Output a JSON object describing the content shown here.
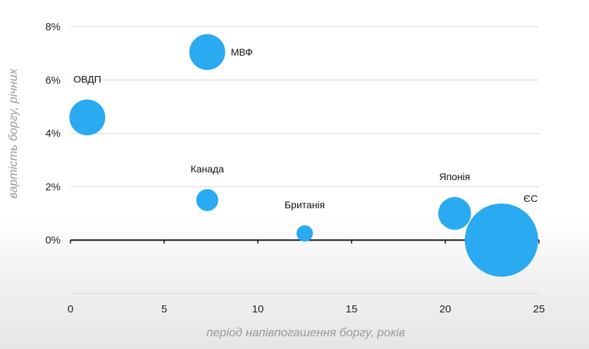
{
  "chart_data": {
    "type": "scatter",
    "title": "",
    "xlabel": "період напівпогашення боргу, років",
    "ylabel": "вартість боргу, річних",
    "xlim": [
      0,
      25
    ],
    "ylim": [
      -2,
      8
    ],
    "x_ticks": [
      0,
      5,
      10,
      15,
      20,
      25
    ],
    "x_tick_labels": [
      "0",
      "5",
      "10",
      "15",
      "20",
      "25"
    ],
    "y_ticks": [
      0,
      2,
      4,
      6,
      8
    ],
    "y_tick_labels": [
      "0%",
      "2%",
      "4%",
      "6%",
      "8%"
    ],
    "grid": "horizontal",
    "bubble_color": "#29aaf1",
    "points": [
      {
        "label": "ОВДП",
        "x": 0.9,
        "y": 4.6,
        "size": 0.24
      },
      {
        "label": "МВФ",
        "x": 7.3,
        "y": 7.05,
        "size": 0.24
      },
      {
        "label": "Канада",
        "x": 7.3,
        "y": 1.5,
        "size": 0.09
      },
      {
        "label": "Британія",
        "x": 12.5,
        "y": 0.25,
        "size": 0.05
      },
      {
        "label": "Японія",
        "x": 20.5,
        "y": 1.0,
        "size": 0.2
      },
      {
        "label": "ЄС",
        "x": 23.0,
        "y": 0.0,
        "size": 1.0
      }
    ]
  }
}
